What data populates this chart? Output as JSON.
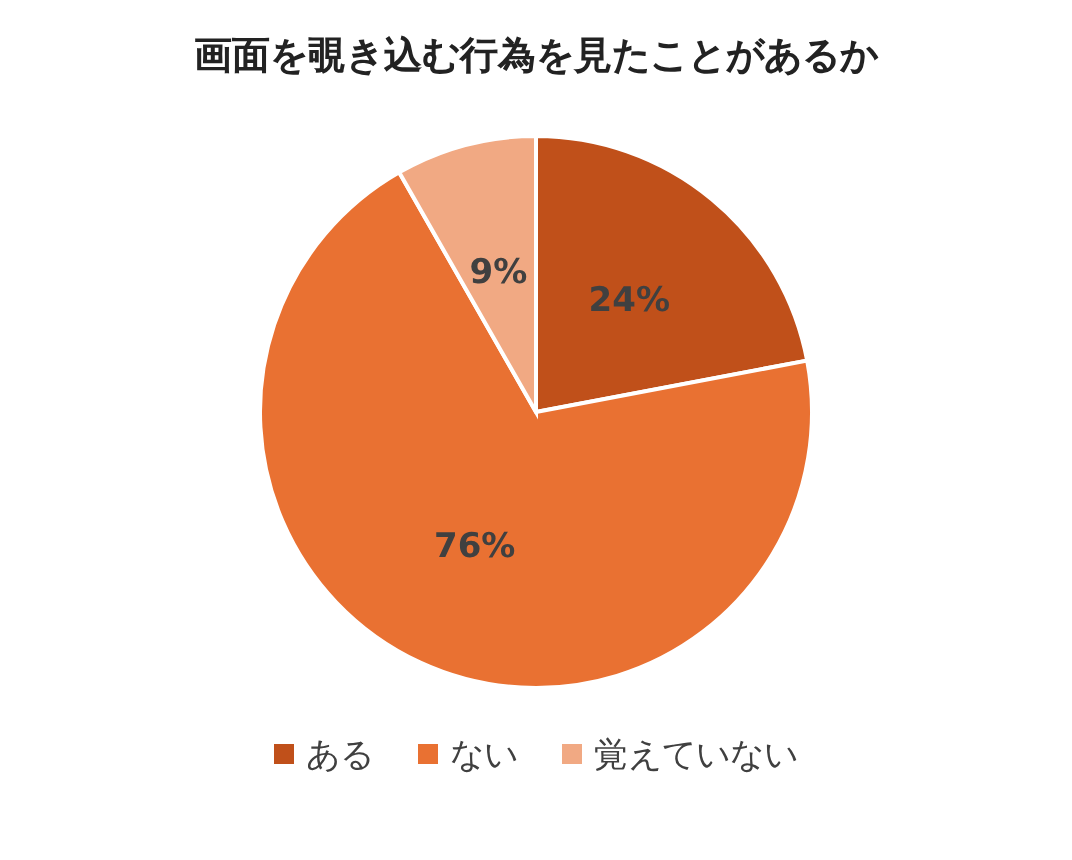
{
  "chart_data": {
    "type": "pie",
    "title": "画面を覗き込む行為を見たことがあるか",
    "categories": [
      "ある",
      "ない",
      "覚えていない"
    ],
    "values": [
      24,
      76,
      9
    ],
    "colors": [
      "#c0501a",
      "#e97132",
      "#f1a983"
    ],
    "value_labels": [
      "24%",
      "76%",
      "9%"
    ],
    "legend": "bottom"
  }
}
